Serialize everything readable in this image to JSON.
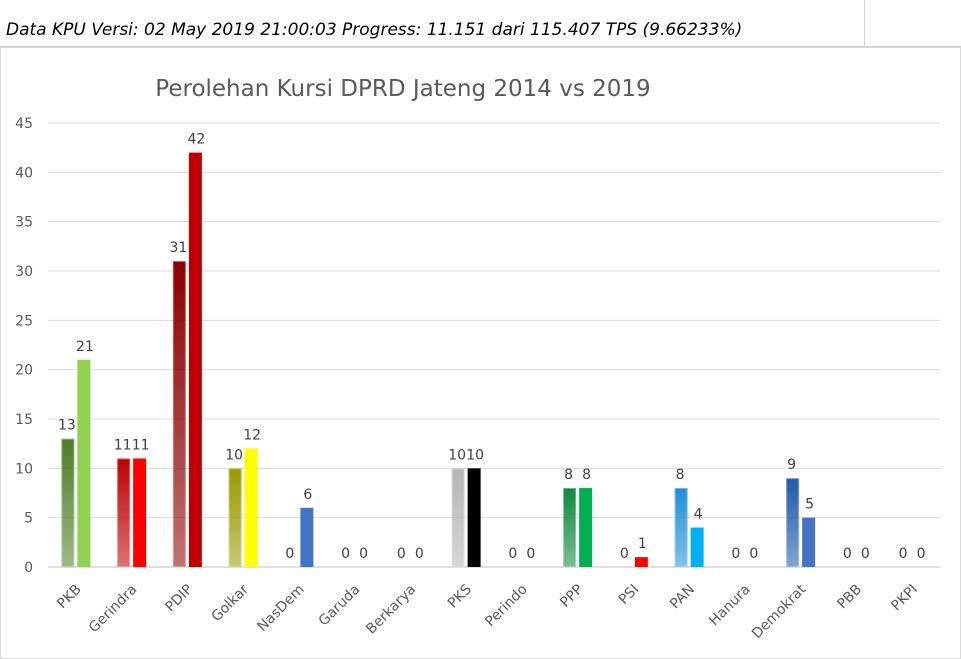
{
  "header": {
    "text": "Data KPU Versi: 02 May 2019 21:00:03 Progress: 11.151 dari 115.407 TPS (9.66233%)"
  },
  "chart_data": {
    "type": "bar",
    "title": "Perolehan Kursi DPRD Jateng 2014 vs 2019",
    "xlabel": "",
    "ylabel": "",
    "ylim": [
      0,
      45
    ],
    "yticks": [
      0,
      5,
      10,
      15,
      20,
      25,
      30,
      35,
      40,
      45
    ],
    "grid": true,
    "categories": [
      "PKB",
      "Gerindra",
      "PDIP",
      "Golkar",
      "NasDem",
      "Garuda",
      "Berkarya",
      "PKS",
      "Perindo",
      "PPP",
      "PSI",
      "PAN",
      "Hanura",
      "Demokrat",
      "PBB",
      "PKPI"
    ],
    "series": [
      {
        "values": [
          13,
          11,
          31,
          10,
          0,
          0,
          0,
          10,
          0,
          8,
          0,
          8,
          0,
          9,
          0,
          0
        ],
        "colors": [
          "#4e7d26",
          "#c00000",
          "#8b0000",
          "#9a9a00",
          "#4472c4",
          "#404040",
          "#404040",
          "#b5b5b5",
          "#404040",
          "#0e8a3c",
          "#ff0000",
          "#1f8fd6",
          "#404040",
          "#1e5aa8",
          "#404040",
          "#404040"
        ],
        "gradient": true
      },
      {
        "values": [
          21,
          11,
          42,
          12,
          6,
          0,
          0,
          10,
          0,
          8,
          1,
          4,
          0,
          5,
          0,
          0
        ],
        "colors": [
          "#92d050",
          "#ff0000",
          "#c00000",
          "#ffff00",
          "#4472c4",
          "#404040",
          "#404040",
          "#000000",
          "#404040",
          "#00b050",
          "#ff0000",
          "#00b0f0",
          "#404040",
          "#4472c4",
          "#404040",
          "#404040"
        ],
        "gradient": false
      }
    ]
  }
}
